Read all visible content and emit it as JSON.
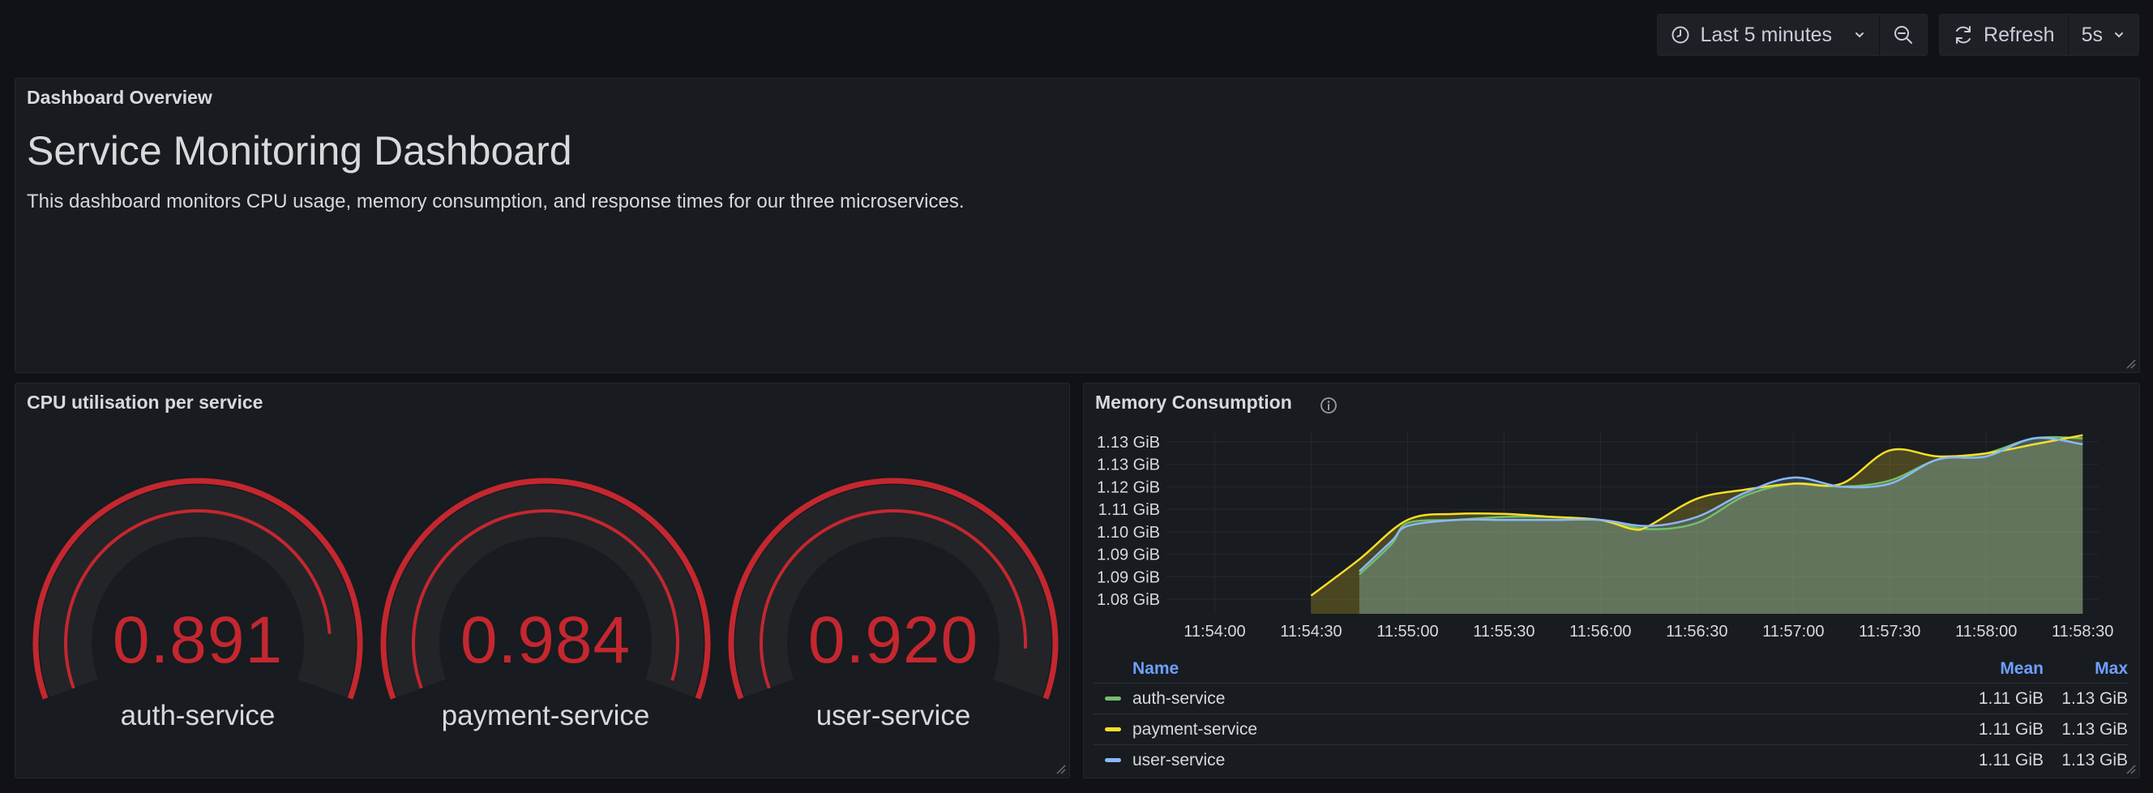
{
  "toolbar": {
    "time_range_label": "Last 5 minutes",
    "refresh_label": "Refresh",
    "refresh_interval": "5s"
  },
  "text_panel": {
    "title": "Dashboard Overview",
    "heading": "Service Monitoring Dashboard",
    "description": "This dashboard monitors CPU usage, memory consumption, and response times for our three microservices."
  },
  "cpu_panel": {
    "title": "CPU utilisation per service",
    "gauges": [
      {
        "label": "auth-service",
        "value": "0.891",
        "fraction": 0.891
      },
      {
        "label": "payment-service",
        "value": "0.984",
        "fraction": 0.984
      },
      {
        "label": "user-service",
        "value": "0.920",
        "fraction": 0.92
      }
    ],
    "color": "#c4272f"
  },
  "memory_panel": {
    "title": "Memory Consumption",
    "legend": {
      "name_header": "Name",
      "mean_header": "Mean",
      "max_header": "Max",
      "rows": [
        {
          "name": "auth-service",
          "mean": "1.11 GiB",
          "max": "1.13 GiB",
          "color": "#73bf69"
        },
        {
          "name": "payment-service",
          "mean": "1.11 GiB",
          "max": "1.13 GiB",
          "color": "#fade2a"
        },
        {
          "name": "user-service",
          "mean": "1.11 GiB",
          "max": "1.13 GiB",
          "color": "#8ab8ff"
        }
      ]
    }
  },
  "chart_data": {
    "type": "line",
    "y_tick_labels": [
      "1.13 GiB",
      "1.13 GiB",
      "1.12 GiB",
      "1.11 GiB",
      "1.10 GiB",
      "1.09 GiB",
      "1.09 GiB",
      "1.08 GiB"
    ],
    "x_tick_labels": [
      "11:54:00",
      "11:54:30",
      "11:55:00",
      "11:55:30",
      "11:56:00",
      "11:56:30",
      "11:57:00",
      "11:57:30",
      "11:58:00",
      "11:58:30"
    ],
    "ylim": [
      1.075,
      1.135
    ],
    "grid": true,
    "series": [
      {
        "name": "auth-service",
        "color": "#73bf69",
        "x": [
          "11:54:45",
          "11:54:55",
          "11:55:00",
          "11:55:15",
          "11:55:30",
          "11:55:45",
          "11:56:00",
          "11:56:15",
          "11:56:30",
          "11:56:45",
          "11:57:00",
          "11:57:15",
          "11:57:30",
          "11:57:45",
          "11:58:00",
          "11:58:15",
          "11:58:30"
        ],
        "y": [
          1.088,
          1.098,
          1.105,
          1.106,
          1.107,
          1.107,
          1.106,
          1.103,
          1.105,
          1.114,
          1.118,
          1.117,
          1.119,
          1.126,
          1.128,
          1.133,
          1.133
        ]
      },
      {
        "name": "payment-service",
        "color": "#fade2a",
        "x": [
          "11:54:30",
          "11:54:45",
          "11:55:00",
          "11:55:15",
          "11:55:30",
          "11:55:45",
          "11:56:00",
          "11:56:10",
          "11:56:15",
          "11:56:30",
          "11:56:45",
          "11:57:00",
          "11:57:15",
          "11:57:30",
          "11:57:45",
          "11:58:00",
          "11:58:15",
          "11:58:30"
        ],
        "y": [
          1.081,
          1.093,
          1.106,
          1.108,
          1.108,
          1.107,
          1.106,
          1.103,
          1.104,
          1.113,
          1.116,
          1.118,
          1.118,
          1.129,
          1.127,
          1.128,
          1.131,
          1.134
        ]
      },
      {
        "name": "user-service",
        "color": "#8ab8ff",
        "x": [
          "11:54:45",
          "11:54:55",
          "11:55:00",
          "11:55:15",
          "11:55:30",
          "11:55:45",
          "11:56:00",
          "11:56:15",
          "11:56:30",
          "11:56:45",
          "11:57:00",
          "11:57:15",
          "11:57:30",
          "11:57:45",
          "11:58:00",
          "11:58:15",
          "11:58:30"
        ],
        "y": [
          1.089,
          1.099,
          1.104,
          1.106,
          1.106,
          1.106,
          1.106,
          1.104,
          1.107,
          1.115,
          1.12,
          1.117,
          1.118,
          1.126,
          1.127,
          1.133,
          1.131
        ]
      }
    ]
  }
}
